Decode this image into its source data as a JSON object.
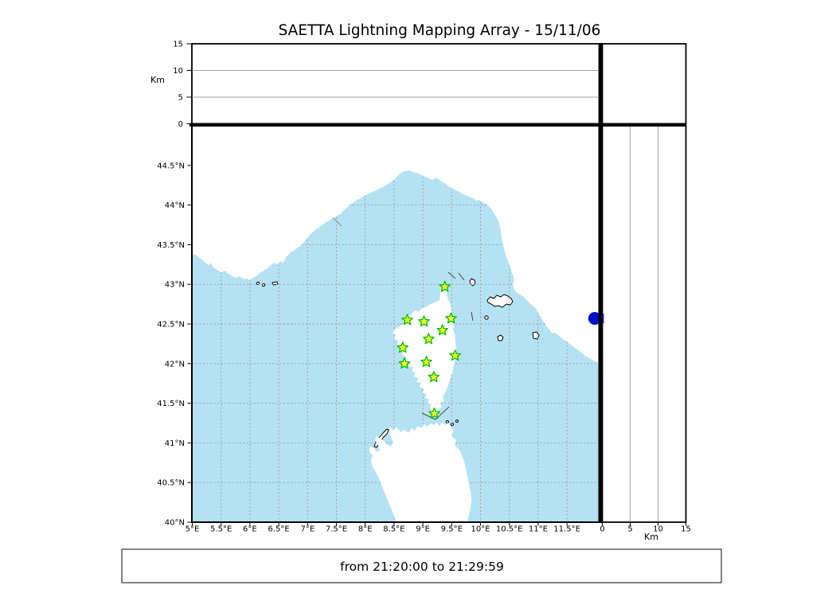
{
  "title": "SAETTA Lightning Mapping Array - 15/11/06",
  "footer": {
    "time_range": "from 21:20:00 to 21:29:59"
  },
  "axes": {
    "altitude": {
      "unit_label": "Km",
      "range_km": [
        0,
        15
      ],
      "ticks": [
        {
          "value": 0,
          "label": "0"
        },
        {
          "value": 5,
          "label": "5"
        },
        {
          "value": 10,
          "label": "10"
        },
        {
          "value": 15,
          "label": "15"
        }
      ]
    },
    "longitude": {
      "range_deg_e": [
        5,
        12
      ],
      "ticks": [
        {
          "value": 5,
          "label": "5°E"
        },
        {
          "value": 5.5,
          "label": "5.5°E"
        },
        {
          "value": 6,
          "label": "6°E"
        },
        {
          "value": 6.5,
          "label": "6.5°E"
        },
        {
          "value": 7,
          "label": "7°E"
        },
        {
          "value": 7.5,
          "label": "7.5°E"
        },
        {
          "value": 8,
          "label": "8°E"
        },
        {
          "value": 8.5,
          "label": "8.5°E"
        },
        {
          "value": 9,
          "label": "9°E"
        },
        {
          "value": 9.5,
          "label": "9.5°E"
        },
        {
          "value": 10,
          "label": "10°E"
        },
        {
          "value": 10.5,
          "label": "10.5°E"
        },
        {
          "value": 11,
          "label": "11°E"
        },
        {
          "value": 11.5,
          "label": "11.5°E"
        }
      ]
    },
    "latitude": {
      "range_deg_n": [
        40,
        45
      ],
      "ticks": [
        {
          "value": 40,
          "label": "40°N"
        },
        {
          "value": 40.5,
          "label": "40.5°N"
        },
        {
          "value": 41,
          "label": "41°N"
        },
        {
          "value": 41.5,
          "label": "41.5°N"
        },
        {
          "value": 42,
          "label": "42°N"
        },
        {
          "value": 42.5,
          "label": "42.5°N"
        },
        {
          "value": 43,
          "label": "43°N"
        },
        {
          "value": 43.5,
          "label": "43.5°N"
        },
        {
          "value": 44,
          "label": "44°N"
        },
        {
          "value": 44.5,
          "label": "44.5°N"
        }
      ]
    }
  },
  "map": {
    "region": "Western Mediterranean: SE France, NW Italy, Corsica, N Sardinia",
    "stations": {
      "marker": "green-star",
      "points_lon_lat": [
        [
          9.38,
          42.97
        ],
        [
          8.73,
          42.55
        ],
        [
          9.02,
          42.53
        ],
        [
          9.49,
          42.57
        ],
        [
          9.34,
          42.42
        ],
        [
          9.1,
          42.31
        ],
        [
          8.65,
          42.2
        ],
        [
          9.56,
          42.1
        ],
        [
          9.06,
          42.02
        ],
        [
          8.68,
          42.0
        ],
        [
          9.19,
          41.83
        ],
        [
          9.2,
          41.37
        ]
      ]
    },
    "lightning_point": {
      "marker": "blue-dot",
      "lon": 11.98,
      "lat": 42.57
    },
    "colors": {
      "sea": "#b5e2f2",
      "land": "#ffffff",
      "river": "#7e7ee8",
      "grid": "#999999",
      "coast": "#000000",
      "station_fill": "#ffff2e",
      "station_stroke": "#00bb00",
      "lightning": "#0011cc",
      "lake": "#000080"
    }
  }
}
